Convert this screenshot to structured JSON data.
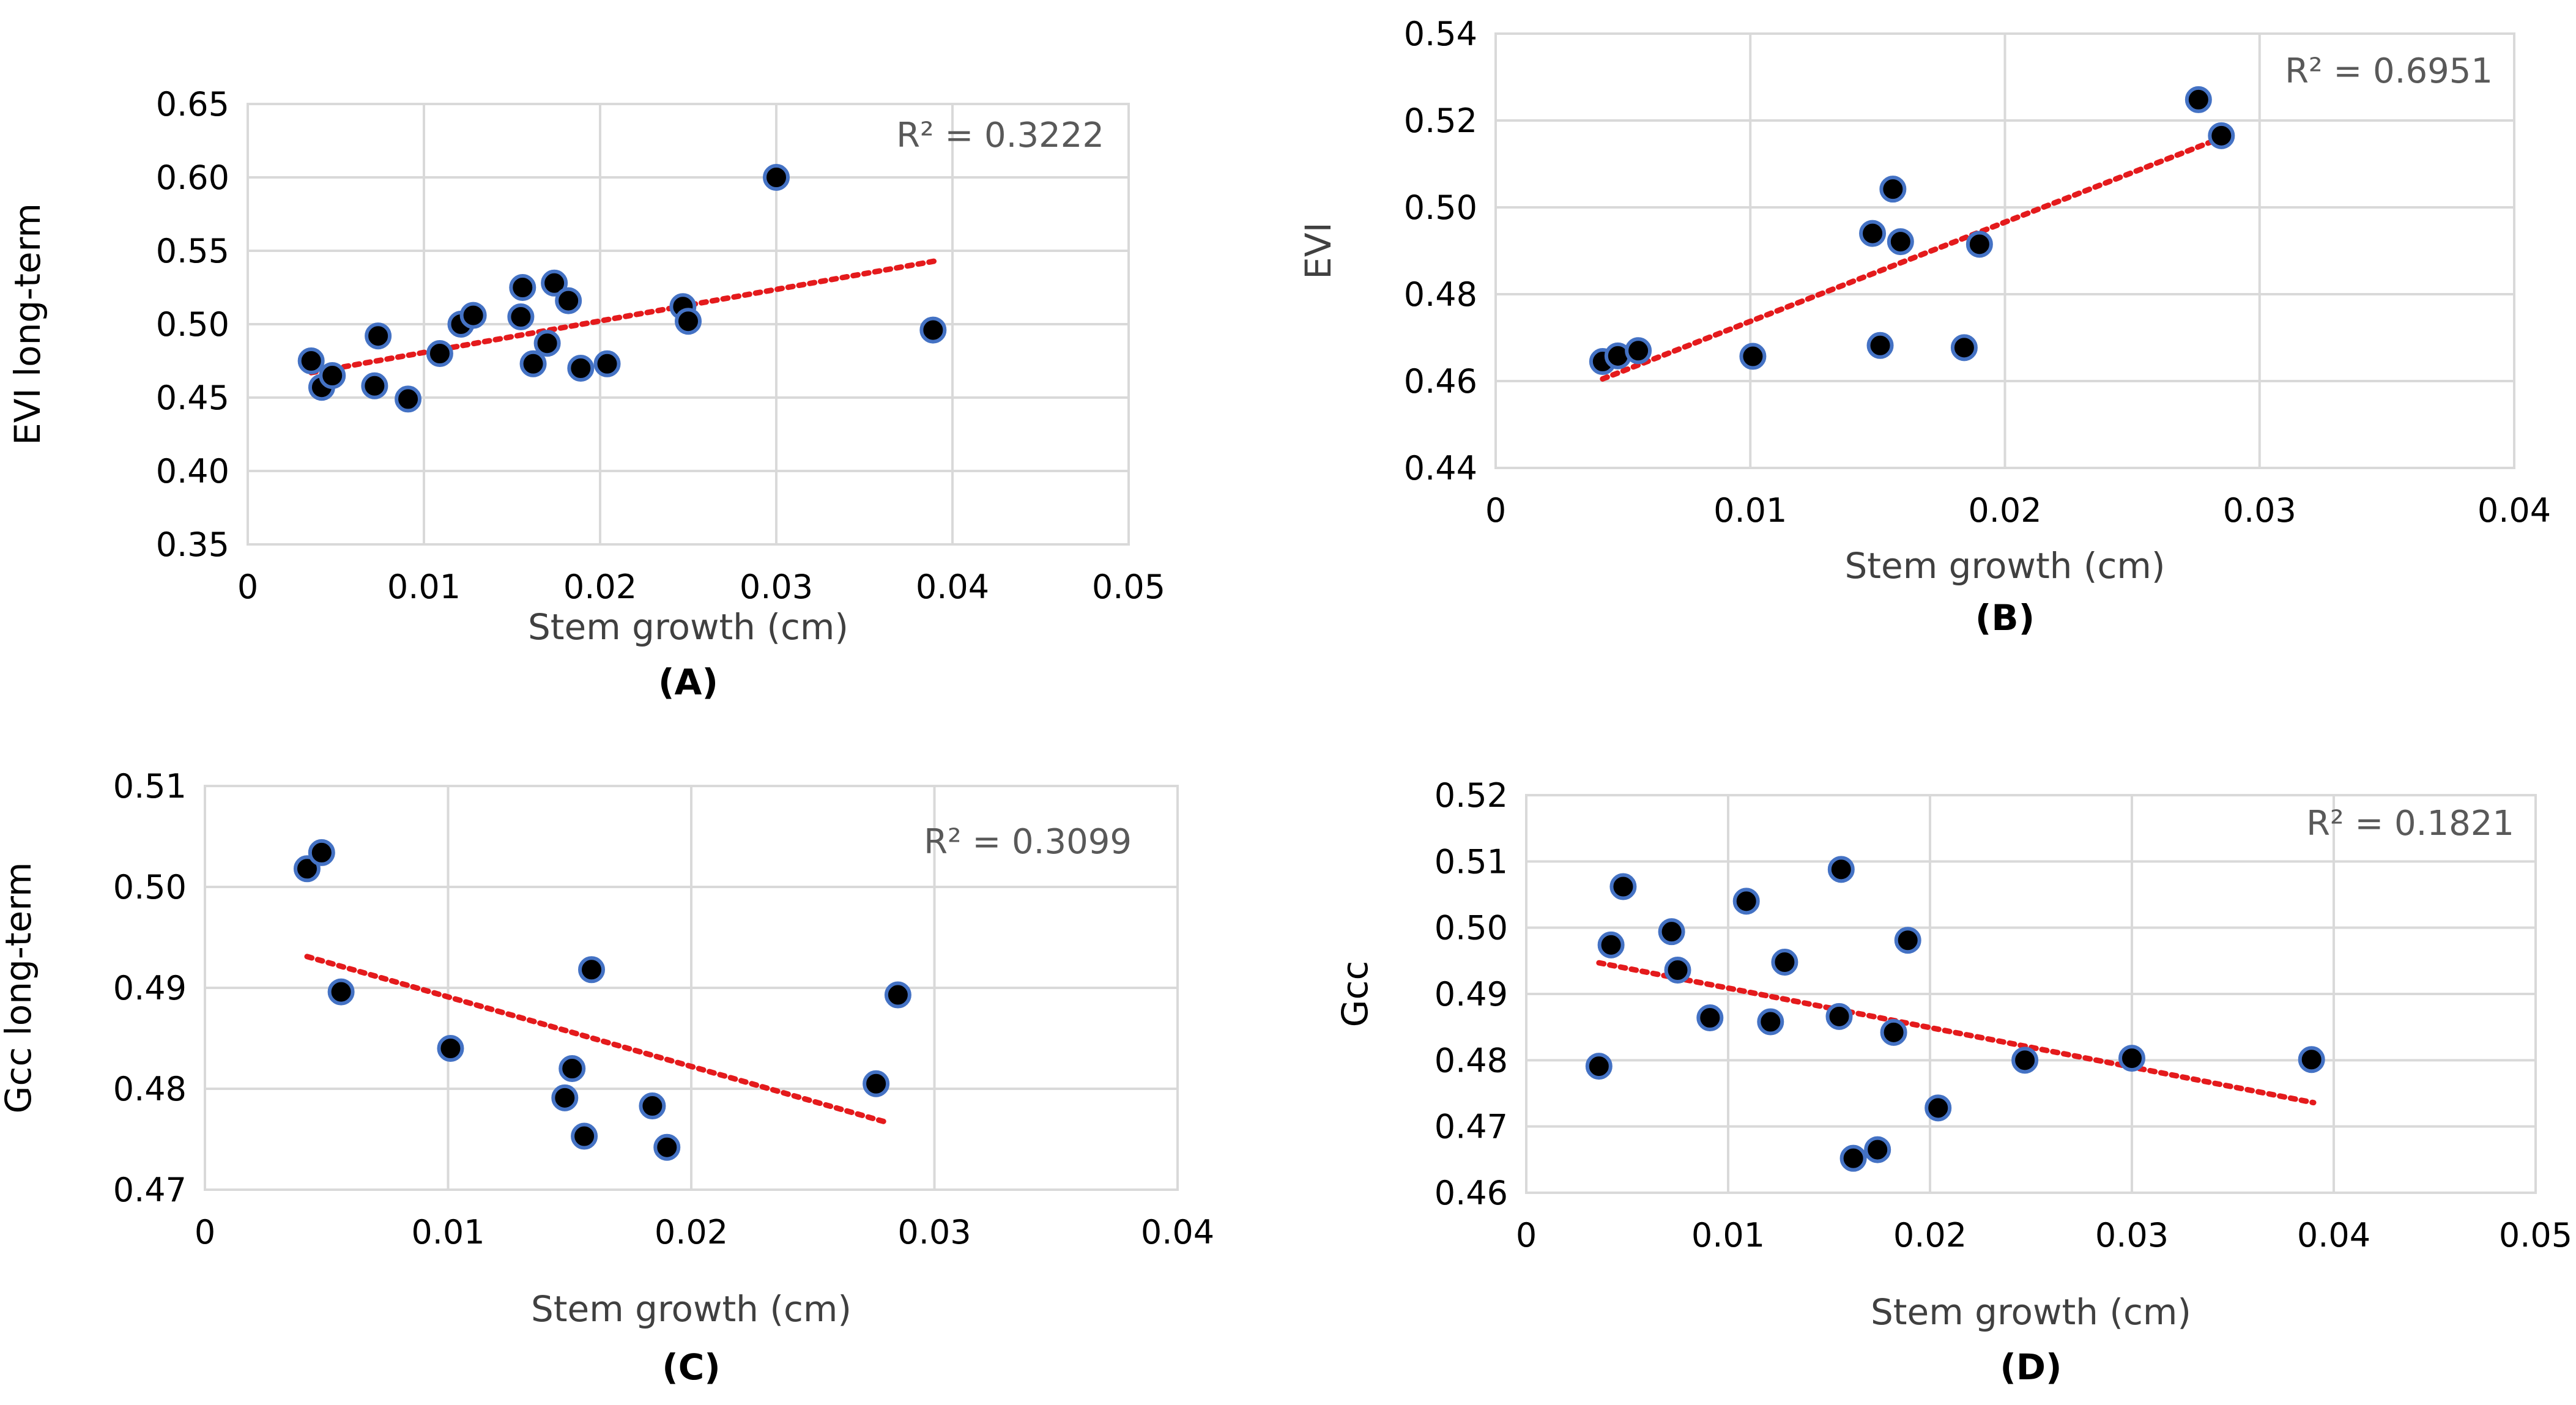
{
  "colors": {
    "point_fill": "#000000",
    "point_stroke": "#4472c4",
    "trend": "#e41a1c",
    "grid": "#d9d9d9"
  },
  "chart_data": [
    {
      "type": "scatter",
      "panel": "(A)",
      "xlabel": "Stem growth (cm)",
      "ylabel": "EVI long-term",
      "annotation": "R² = 0.3222",
      "xlim": [
        0,
        0.05
      ],
      "ylim": [
        0.35,
        0.65
      ],
      "xticks": [
        0,
        0.01,
        0.02,
        0.03,
        0.04,
        0.05
      ],
      "xtick_labels": [
        "0",
        "0.01",
        "0.02",
        "0.03",
        "0.04",
        "0.05"
      ],
      "yticks": [
        0.35,
        0.4,
        0.45,
        0.5,
        0.55,
        0.6,
        0.65
      ],
      "ytick_labels": [
        "0.35",
        "0.40",
        "0.45",
        "0.50",
        "0.55",
        "0.60",
        "0.65"
      ],
      "grid": true,
      "points": [
        {
          "x": 0.0036,
          "y": 0.475
        },
        {
          "x": 0.0042,
          "y": 0.457
        },
        {
          "x": 0.0048,
          "y": 0.465
        },
        {
          "x": 0.0072,
          "y": 0.458
        },
        {
          "x": 0.0074,
          "y": 0.492
        },
        {
          "x": 0.0091,
          "y": 0.449
        },
        {
          "x": 0.0109,
          "y": 0.48
        },
        {
          "x": 0.0121,
          "y": 0.5
        },
        {
          "x": 0.0128,
          "y": 0.506
        },
        {
          "x": 0.0155,
          "y": 0.505
        },
        {
          "x": 0.0156,
          "y": 0.525
        },
        {
          "x": 0.0162,
          "y": 0.473
        },
        {
          "x": 0.017,
          "y": 0.487
        },
        {
          "x": 0.0174,
          "y": 0.528
        },
        {
          "x": 0.0182,
          "y": 0.516
        },
        {
          "x": 0.0189,
          "y": 0.47
        },
        {
          "x": 0.0204,
          "y": 0.473
        },
        {
          "x": 0.0247,
          "y": 0.512
        },
        {
          "x": 0.025,
          "y": 0.502
        },
        {
          "x": 0.03,
          "y": 0.6
        },
        {
          "x": 0.0389,
          "y": 0.496
        }
      ],
      "trendline": {
        "x": [
          0.0036,
          0.039
        ],
        "y": [
          0.467,
          0.543
        ]
      }
    },
    {
      "type": "scatter",
      "panel": "(B)",
      "xlabel": "Stem growth (cm)",
      "ylabel": "EVI",
      "annotation": "R² = 0.6951",
      "xlim": [
        0,
        0.04
      ],
      "ylim": [
        0.44,
        0.54
      ],
      "xticks": [
        0,
        0.01,
        0.02,
        0.03,
        0.04
      ],
      "xtick_labels": [
        "0",
        "0.01",
        "0.02",
        "0.03",
        "0.04"
      ],
      "yticks": [
        0.44,
        0.46,
        0.48,
        0.5,
        0.52,
        0.54
      ],
      "ytick_labels": [
        "0.44",
        "0.46",
        "0.48",
        "0.50",
        "0.52",
        "0.54"
      ],
      "grid": true,
      "points": [
        {
          "x": 0.0042,
          "y": 0.4645
        },
        {
          "x": 0.0048,
          "y": 0.4658
        },
        {
          "x": 0.0056,
          "y": 0.467
        },
        {
          "x": 0.0101,
          "y": 0.4657
        },
        {
          "x": 0.0148,
          "y": 0.494
        },
        {
          "x": 0.0151,
          "y": 0.4682
        },
        {
          "x": 0.0156,
          "y": 0.5042
        },
        {
          "x": 0.0159,
          "y": 0.4921
        },
        {
          "x": 0.0184,
          "y": 0.4677
        },
        {
          "x": 0.019,
          "y": 0.4915
        },
        {
          "x": 0.0276,
          "y": 0.5248
        },
        {
          "x": 0.0285,
          "y": 0.5165
        }
      ],
      "trendline": {
        "x": [
          0.0042,
          0.0285
        ],
        "y": [
          0.4605,
          0.516
        ]
      }
    },
    {
      "type": "scatter",
      "panel": "(C)",
      "xlabel": "Stem growth (cm)",
      "ylabel": "Gcc long-term",
      "annotation": "R² = 0.3099",
      "xlim": [
        0,
        0.04
      ],
      "ylim": [
        0.47,
        0.51
      ],
      "xticks": [
        0,
        0.01,
        0.02,
        0.03,
        0.04
      ],
      "xtick_labels": [
        "0",
        "0.01",
        "0.02",
        "0.03",
        "0.04"
      ],
      "yticks": [
        0.47,
        0.48,
        0.49,
        0.5,
        0.51
      ],
      "ytick_labels": [
        "0.47",
        "0.48",
        "0.49",
        "0.50",
        "0.51"
      ],
      "grid": true,
      "points": [
        {
          "x": 0.0042,
          "y": 0.5018
        },
        {
          "x": 0.0048,
          "y": 0.5034
        },
        {
          "x": 0.0056,
          "y": 0.4896
        },
        {
          "x": 0.0101,
          "y": 0.484
        },
        {
          "x": 0.0148,
          "y": 0.4791
        },
        {
          "x": 0.0151,
          "y": 0.482
        },
        {
          "x": 0.0156,
          "y": 0.4753
        },
        {
          "x": 0.0159,
          "y": 0.4918
        },
        {
          "x": 0.0184,
          "y": 0.4783
        },
        {
          "x": 0.019,
          "y": 0.4742
        },
        {
          "x": 0.0276,
          "y": 0.4805
        },
        {
          "x": 0.0285,
          "y": 0.4893
        }
      ],
      "trendline": {
        "x": [
          0.0042,
          0.028
        ],
        "y": [
          0.4931,
          0.4767
        ]
      }
    },
    {
      "type": "scatter",
      "panel": "(D)",
      "xlabel": "Stem growth (cm)",
      "ylabel": "Gcc",
      "annotation": "R² = 0.1821",
      "xlim": [
        0,
        0.05
      ],
      "ylim": [
        0.46,
        0.52
      ],
      "xticks": [
        0,
        0.01,
        0.02,
        0.03,
        0.04,
        0.05
      ],
      "xtick_labels": [
        "0",
        "0.01",
        "0.02",
        "0.03",
        "0.04",
        "0.05"
      ],
      "yticks": [
        0.46,
        0.47,
        0.48,
        0.49,
        0.5,
        0.51,
        0.52
      ],
      "ytick_labels": [
        "0.46",
        "0.47",
        "0.48",
        "0.49",
        "0.50",
        "0.51",
        "0.52"
      ],
      "grid": true,
      "points": [
        {
          "x": 0.0036,
          "y": 0.4791
        },
        {
          "x": 0.0042,
          "y": 0.4974
        },
        {
          "x": 0.0048,
          "y": 0.5062
        },
        {
          "x": 0.0072,
          "y": 0.4994
        },
        {
          "x": 0.0075,
          "y": 0.4936
        },
        {
          "x": 0.0091,
          "y": 0.4864
        },
        {
          "x": 0.0109,
          "y": 0.504
        },
        {
          "x": 0.0121,
          "y": 0.4858
        },
        {
          "x": 0.0128,
          "y": 0.4948
        },
        {
          "x": 0.0155,
          "y": 0.4866
        },
        {
          "x": 0.0156,
          "y": 0.5088
        },
        {
          "x": 0.0162,
          "y": 0.4652
        },
        {
          "x": 0.0174,
          "y": 0.4665
        },
        {
          "x": 0.0182,
          "y": 0.4842
        },
        {
          "x": 0.0189,
          "y": 0.4981
        },
        {
          "x": 0.0204,
          "y": 0.4728
        },
        {
          "x": 0.0247,
          "y": 0.48
        },
        {
          "x": 0.03,
          "y": 0.4803
        },
        {
          "x": 0.0389,
          "y": 0.4801
        }
      ],
      "trendline": {
        "x": [
          0.0036,
          0.039
        ],
        "y": [
          0.4947,
          0.4736
        ]
      }
    }
  ]
}
